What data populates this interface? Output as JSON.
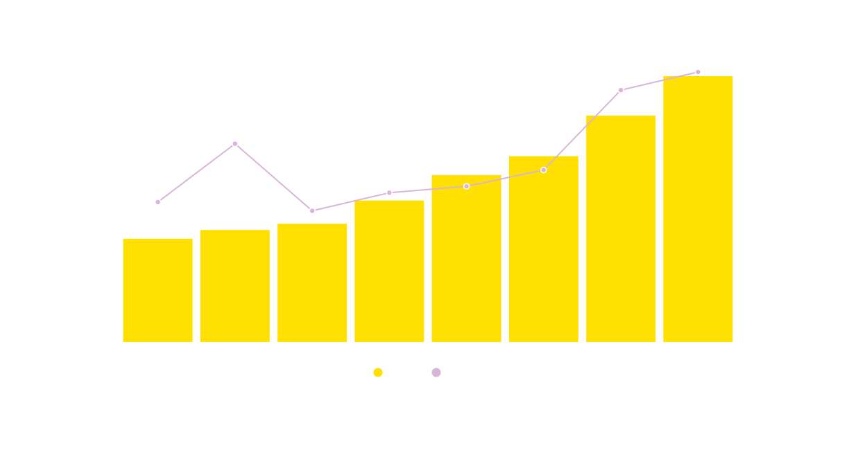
{
  "chart_data": {
    "type": "bar",
    "categories": [
      "",
      "",
      "",
      "",
      "",
      "",
      "",
      ""
    ],
    "series": [
      {
        "type": "bar",
        "color": "#FFE000",
        "values": [
          40,
          43.4,
          45.8,
          54.8,
          64.7,
          72,
          87.7,
          103
        ]
      },
      {
        "type": "line",
        "color": "#D8B4D8",
        "values": [
          58,
          68,
          56.5,
          59.6,
          60.7,
          63.5,
          77.2,
          80.3
        ]
      }
    ],
    "ylim_bar": [
      0,
      103
    ],
    "ylim_line": [
      34,
      80.3
    ],
    "grid": false,
    "legend": {
      "placement": "bottom-center",
      "items": [
        {
          "color": "#FFE000",
          "marker": "dot"
        },
        {
          "color": "#D8B4D8",
          "marker": "dot"
        }
      ]
    }
  }
}
